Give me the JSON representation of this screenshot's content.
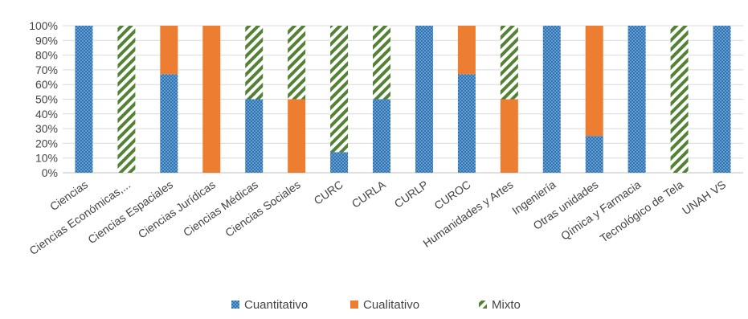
{
  "chart_data": {
    "type": "bar",
    "stacked": true,
    "title": "",
    "xlabel": "",
    "ylabel": "",
    "ylim": [
      0,
      100
    ],
    "yticks": [
      "0%",
      "10%",
      "20%",
      "30%",
      "40%",
      "50%",
      "60%",
      "70%",
      "80%",
      "90%",
      "100%"
    ],
    "grid": true,
    "legend_position": "bottom",
    "categories": [
      "Ciencias",
      "Ciencias Económicas,...",
      "Ciencias Espaciales",
      "Ciencias Jurídicas",
      "Ciencias Médicas",
      "Ciencias Sociales",
      "CURC",
      "CURLA",
      "CURLP",
      "CUROC",
      "Humanidades y Artes",
      "Ingeniería",
      "Otras unidades",
      "Qímica y Farmacia",
      "Tecnológico de Tela",
      "UNAH VS"
    ],
    "series": [
      {
        "name": "Cuantitativo",
        "color": "#2e75b6",
        "pattern": "dots",
        "values": [
          100,
          0,
          67,
          0,
          50,
          0,
          14,
          50,
          100,
          67,
          0,
          100,
          25,
          100,
          0,
          100
        ]
      },
      {
        "name": "Cualitativo",
        "color": "#ed7d31",
        "pattern": "solid",
        "values": [
          0,
          0,
          33,
          100,
          0,
          50,
          0,
          0,
          0,
          33,
          50,
          0,
          75,
          0,
          0,
          0
        ]
      },
      {
        "name": "Mixto",
        "color": "#548235",
        "pattern": "diagonal-stripes",
        "values": [
          0,
          100,
          0,
          0,
          50,
          50,
          86,
          50,
          0,
          0,
          50,
          0,
          0,
          0,
          100,
          0
        ]
      }
    ]
  }
}
